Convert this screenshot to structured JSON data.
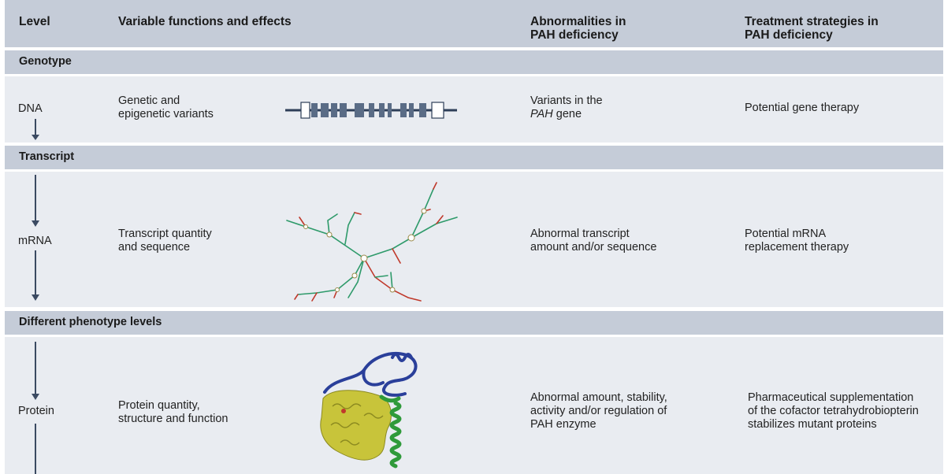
{
  "header": {
    "level": "Level",
    "functions": "Variable functions and effects",
    "abnormalities": "Abnormalities in\nPAH deficiency",
    "treatment": "Treatment strategies in\nPAH deficiency"
  },
  "sections": {
    "genotype": "Genotype",
    "transcript": "Transcript",
    "phenotype": "Different phenotype levels"
  },
  "rows": {
    "dna": {
      "level": "DNA",
      "function": "Genetic and\nepigenetic variants",
      "abn_prefix": "Variants in the",
      "abn_gene": "PAH",
      "abn_suffix": " gene",
      "treatment": "Potential gene therapy"
    },
    "mrna": {
      "level": "mRNA",
      "function": "Transcript quantity\nand sequence",
      "abnormality": "Abnormal transcript\namount and/or sequence",
      "treatment": "Potential mRNA\nreplacement therapy"
    },
    "protein": {
      "level": "Protein",
      "function": "Protein quantity,\nstructure and function",
      "abnormality": "Abnormal amount, stability,\nactivity and/or regulation of\nPAH enzyme",
      "treatment": "Pharmaceutical supplementation\nof the cofactor tetrahydrobiopterin\nstabilizes mutant proteins"
    }
  },
  "colors": {
    "band": "#c5ccd8",
    "row": "#e9ecf1",
    "gene_exon": "#5a6c86",
    "gene_line": "#2d3e58",
    "arrow": "#3b4a62",
    "rna_green": "#2e9a6a",
    "rna_red": "#c0392b",
    "protein_yellow": "#c8c43a",
    "protein_blue": "#2a3f9a",
    "protein_green": "#2f9a3a"
  },
  "icons": [
    "gene-diagram",
    "mrna-structure",
    "protein-structure",
    "down-arrow"
  ]
}
